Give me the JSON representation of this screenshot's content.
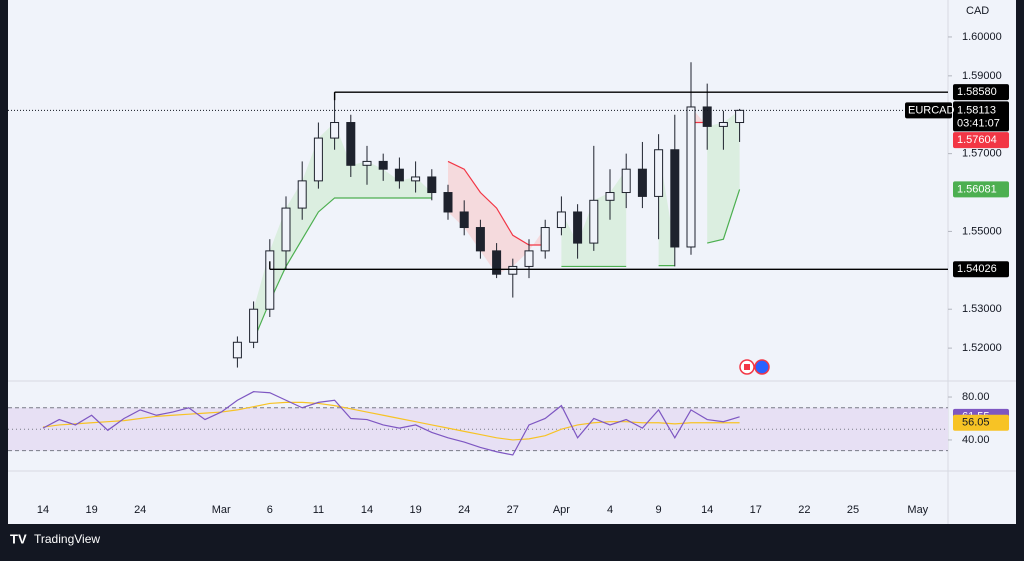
{
  "chart_data": {
    "type": "candlestick",
    "currency": "CAD",
    "symbol": "EURCAD",
    "countdown": "03:41:07",
    "brand": "TradingView",
    "categories": [
      "14",
      null,
      null,
      "19",
      null,
      null,
      "24",
      null,
      null,
      null,
      null,
      "Mar",
      null,
      null,
      "6",
      null,
      null,
      "11",
      null,
      null,
      "14",
      null,
      null,
      "19",
      null,
      null,
      "24",
      null,
      null,
      "27",
      null,
      null,
      "Apr",
      null,
      null,
      "4",
      null,
      null,
      "9",
      null,
      null,
      "14",
      null,
      null,
      "17",
      null,
      null,
      "22",
      null,
      null,
      "25",
      null,
      null,
      null,
      "May"
    ],
    "open": [
      null,
      null,
      null,
      null,
      null,
      null,
      null,
      null,
      null,
      null,
      null,
      null,
      1.5175,
      1.5215,
      1.53,
      1.545,
      1.556,
      1.563,
      1.574,
      1.578,
      1.567,
      1.568,
      1.566,
      1.563,
      1.564,
      1.56,
      1.555,
      1.551,
      1.545,
      1.539,
      1.541,
      1.545,
      1.551,
      1.555,
      1.547,
      1.558,
      1.56,
      1.566,
      1.559,
      1.571,
      1.546,
      1.582,
      1.577,
      1.578,
      null,
      null,
      null,
      null,
      null,
      null,
      null,
      null,
      null,
      null,
      null
    ],
    "high": [
      null,
      null,
      null,
      null,
      null,
      null,
      null,
      null,
      null,
      null,
      null,
      null,
      1.523,
      1.532,
      1.548,
      1.559,
      1.568,
      1.578,
      1.5858,
      1.58,
      1.572,
      1.57,
      1.569,
      1.568,
      1.566,
      1.562,
      1.558,
      1.553,
      1.547,
      1.543,
      1.548,
      1.553,
      1.559,
      1.557,
      1.572,
      1.566,
      1.57,
      1.573,
      1.575,
      1.58,
      1.5935,
      1.588,
      1.581,
      1.5815,
      null,
      null,
      null,
      null,
      null,
      null,
      null,
      null,
      null,
      null,
      null
    ],
    "low": [
      null,
      null,
      null,
      null,
      null,
      null,
      null,
      null,
      null,
      null,
      null,
      null,
      1.515,
      1.52,
      1.528,
      1.5403,
      1.553,
      1.561,
      1.571,
      1.564,
      1.562,
      1.563,
      1.561,
      1.56,
      1.558,
      1.553,
      1.549,
      1.543,
      1.538,
      1.533,
      1.538,
      1.543,
      1.549,
      1.543,
      1.545,
      1.553,
      1.556,
      1.556,
      1.548,
      1.541,
      1.544,
      1.571,
      1.571,
      1.573,
      null,
      null,
      null,
      null,
      null,
      null,
      null,
      null,
      null,
      null,
      null
    ],
    "close": [
      null,
      null,
      null,
      null,
      null,
      null,
      null,
      null,
      null,
      null,
      null,
      null,
      1.5215,
      1.53,
      1.545,
      1.556,
      1.563,
      1.574,
      1.578,
      1.567,
      1.568,
      1.566,
      1.563,
      1.564,
      1.56,
      1.555,
      1.551,
      1.545,
      1.539,
      1.541,
      1.545,
      1.551,
      1.555,
      1.547,
      1.558,
      1.56,
      1.566,
      1.559,
      1.571,
      1.546,
      1.582,
      1.577,
      1.578,
      1.58113,
      null,
      null,
      null,
      null,
      null,
      null,
      null,
      null,
      null,
      null,
      null
    ],
    "candle_color": "#1e222d",
    "ylim": [
      1.5118,
      1.6095
    ],
    "yticks": [
      {
        "value": 1.52,
        "label": "1.52000"
      },
      {
        "value": 1.53,
        "label": "1.53000"
      },
      {
        "value": 1.55,
        "label": "1.55000"
      },
      {
        "value": 1.57,
        "label": "1.57000"
      },
      {
        "value": 1.59,
        "label": "1.59000"
      },
      {
        "value": 1.6,
        "label": "1.60000"
      }
    ],
    "grid": false,
    "supertrend": [
      {
        "color": "#4caf50",
        "fill": "#d6ecd9",
        "values": [
          null,
          null,
          null,
          null,
          null,
          null,
          null,
          null,
          null,
          null,
          null,
          null,
          null,
          1.522,
          1.532,
          1.541,
          1.548,
          1.555,
          1.5586,
          1.5586,
          1.5586,
          1.5586,
          1.5586,
          1.5586,
          1.5586,
          null,
          null,
          null,
          null,
          null,
          null,
          null,
          1.541,
          1.541,
          1.541,
          1.541,
          1.541,
          null,
          1.5412,
          1.5412,
          null,
          1.547,
          1.548,
          1.5608,
          null,
          null,
          null,
          null,
          null,
          null,
          null,
          null,
          null,
          null,
          null
        ]
      },
      {
        "color": "#f23645",
        "fill": "#f6d3d6",
        "values": [
          null,
          null,
          null,
          null,
          null,
          null,
          null,
          null,
          null,
          null,
          null,
          null,
          null,
          null,
          null,
          null,
          null,
          null,
          null,
          null,
          null,
          null,
          null,
          null,
          null,
          1.568,
          1.566,
          1.56,
          1.556,
          1.549,
          1.5465,
          1.5465,
          null,
          null,
          null,
          null,
          null,
          1.566,
          null,
          null,
          1.578,
          1.578,
          null,
          null,
          null,
          null,
          null,
          null,
          null,
          null,
          null,
          null,
          null,
          null,
          null
        ]
      }
    ],
    "levels": [
      {
        "value": 1.5858,
        "label": "1.58580"
      },
      {
        "value": 1.54026,
        "label": "1.54026"
      }
    ],
    "level_color": "#000000",
    "price_tags": [
      {
        "value": 1.58113,
        "label": "1.58113",
        "color": "#000000"
      },
      {
        "value": 1.57604,
        "label": "1.57604",
        "color": "#f23645"
      },
      {
        "value": 1.56081,
        "label": "1.56081",
        "color": "#4caf50"
      }
    ],
    "rsi": {
      "color": "#7e57c2",
      "values": [
        51,
        59,
        54,
        63,
        49,
        60,
        68,
        63,
        66,
        70,
        59,
        66,
        77,
        85,
        84,
        77,
        70,
        75,
        77,
        60,
        59,
        54,
        51,
        54,
        47,
        42,
        38,
        33,
        29,
        26,
        54,
        60,
        72,
        42,
        60,
        54,
        59,
        51,
        68,
        42,
        68,
        59,
        57,
        61.55,
        null,
        null,
        null,
        null,
        null,
        null,
        null,
        null,
        null,
        null,
        null
      ],
      "ma": {
        "color": "#f7c325",
        "values": [
          52,
          54,
          55,
          56,
          57,
          58,
          60,
          62,
          63,
          64,
          65,
          66,
          68,
          71,
          74,
          75,
          75,
          74,
          72,
          69,
          66,
          63,
          60,
          57,
          54,
          51,
          48,
          45,
          42,
          40,
          41,
          44,
          50,
          54,
          56,
          57,
          57,
          56,
          56,
          55,
          56,
          56,
          56,
          56.05,
          null,
          null,
          null,
          null,
          null,
          null,
          null,
          null,
          null,
          null,
          null
        ]
      },
      "ylim": [
        12,
        94
      ],
      "yticks": [
        {
          "value": 80,
          "label": "80.00"
        },
        {
          "value": 40,
          "label": "40.00"
        }
      ],
      "bands": [
        70,
        50,
        30
      ],
      "band_fill": "#e7e0f4"
    }
  }
}
